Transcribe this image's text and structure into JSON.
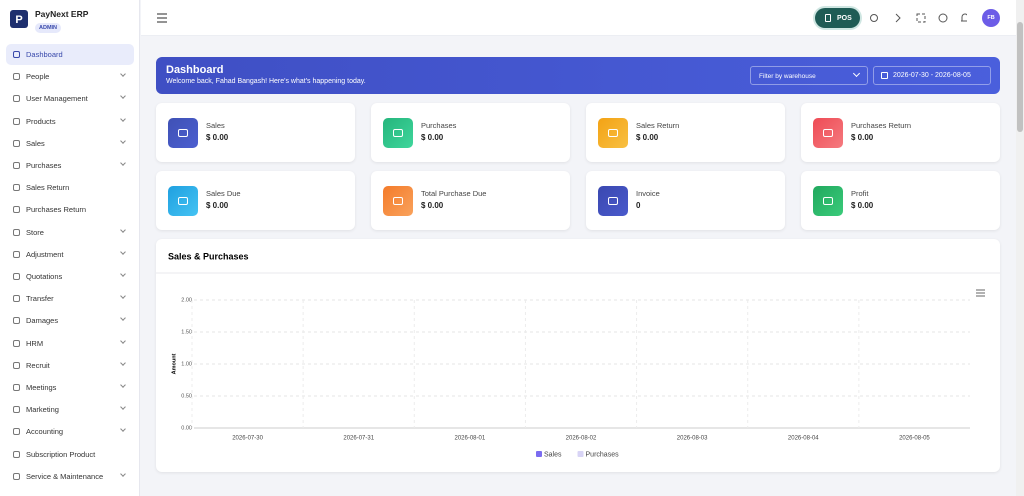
{
  "brand": {
    "name": "PayNext ERP",
    "role": "ADMIN"
  },
  "sidebar": [
    "Dashboard",
    "People",
    "User Management",
    "Products",
    "Sales",
    "Purchases",
    "Sales Return",
    "Purchases Return",
    "Store",
    "Adjustment",
    "Quotations",
    "Transfer",
    "Damages",
    "HRM",
    "Recruit",
    "Meetings",
    "Marketing",
    "Accounting",
    "Subscription Product",
    "Service & Maintenance"
  ],
  "topbar": {
    "pos": "POS",
    "avatar": "FB"
  },
  "banner": {
    "title": "Dashboard",
    "subtitle": "Welcome back, Fahad Bangash! Here's what's happening today.",
    "filter": "Filter by warehouse",
    "date_range": "2026-07-30 - 2026-08-05"
  },
  "cards": [
    {
      "label": "Sales",
      "value": "$ 0.00"
    },
    {
      "label": "Purchases",
      "value": "$ 0.00"
    },
    {
      "label": "Sales Return",
      "value": "$ 0.00"
    },
    {
      "label": "Purchases Return",
      "value": "$ 0.00"
    },
    {
      "label": "Sales Due",
      "value": "$ 0.00"
    },
    {
      "label": "Total Purchase Due",
      "value": "$ 0.00"
    },
    {
      "label": "Invoice",
      "value": "0"
    },
    {
      "label": "Profit",
      "value": "$ 0.00"
    }
  ],
  "chart": {
    "type": "line",
    "title": "Sales & Purchases",
    "y_label": "Amount",
    "categories": [
      "2026-07-30",
      "2026-07-31",
      "2026-08-01",
      "2026-08-02",
      "2026-08-03",
      "2026-08-04",
      "2026-08-05"
    ],
    "ylim": [
      0,
      2
    ],
    "yticks": [
      {
        "value": 0,
        "label": "0.00"
      },
      {
        "value": 0.5,
        "label": "0.50"
      },
      {
        "value": 1,
        "label": "1.00"
      },
      {
        "value": 1.5,
        "label": "1.50"
      },
      {
        "value": 2,
        "label": "2.00"
      }
    ],
    "grid": true,
    "series": [
      {
        "name": "Sales",
        "color": "#7b6cf0",
        "values": [
          null,
          null,
          null,
          null,
          null,
          null,
          null
        ]
      },
      {
        "name": "Purchases",
        "color": "#d8d4f6",
        "values": [
          null,
          null,
          null,
          null,
          null,
          null,
          null
        ]
      }
    ]
  }
}
